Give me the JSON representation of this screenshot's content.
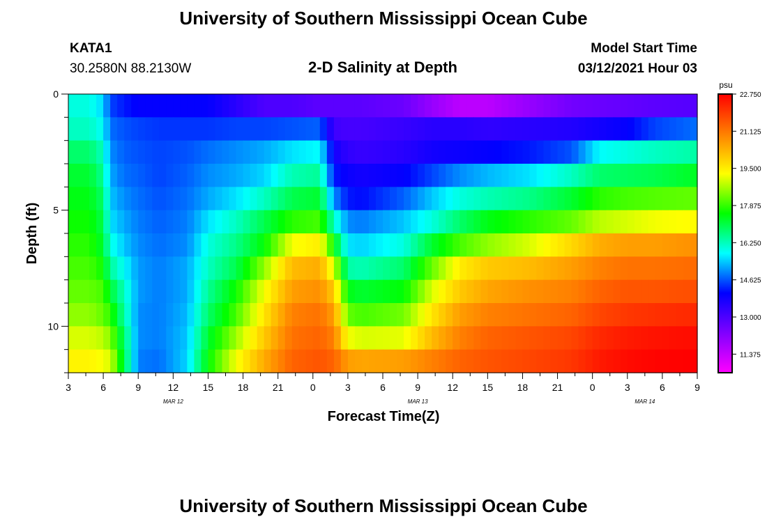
{
  "header": {
    "title": "University of Southern Mississippi Ocean Cube",
    "station": "KATA1",
    "coords": "30.2580N 88.2130W",
    "subtitle": "2-D Salinity at Depth",
    "model_label": "Model Start Time",
    "model_time": "03/12/2021 Hour 03"
  },
  "footer": {
    "title": "University of Southern Mississippi Ocean Cube"
  },
  "colors": {
    "background": "#ffffff",
    "text": "#000000",
    "scale": [
      "#ff00ff",
      "#8000ff",
      "#0000ff",
      "#00ffff",
      "#00ff00",
      "#ffff00",
      "#ff8000",
      "#ff0000"
    ]
  },
  "chart_data": {
    "type": "heatmap",
    "xlabel": "Forecast Time(Z)",
    "ylabel": "Depth (ft)",
    "x_tick_labels": [
      "3",
      "6",
      "9",
      "12",
      "15",
      "18",
      "21",
      "0",
      "3",
      "6",
      "9",
      "12",
      "15",
      "18",
      "21",
      "0",
      "3",
      "6",
      "9"
    ],
    "y_ticks": [
      0,
      5,
      10
    ],
    "y_range": [
      0,
      12
    ],
    "date_labels": [
      {
        "text": "MAR 12",
        "hour_index": 3
      },
      {
        "text": "MAR 13",
        "hour_index": 10
      },
      {
        "text": "MAR 14",
        "hour_index": 16.5
      }
    ],
    "colorbar": {
      "unit": "psu",
      "min": 10.562,
      "max": 22.75,
      "labels": [
        "22.750",
        "21.125",
        "19.500",
        "17.875",
        "16.250",
        "14.625",
        "13.000",
        "11.375"
      ],
      "label_values": [
        22.75,
        21.125,
        19.5,
        17.875,
        16.25,
        14.625,
        13.0,
        11.375
      ]
    },
    "depth_levels": [
      0.5,
      1.5,
      2.5,
      3.5,
      4.5,
      5.5,
      6.5,
      7.5,
      8.5,
      9.5,
      10.5,
      11.5
    ],
    "time_hours_key": [
      0,
      3,
      5,
      6,
      8,
      10,
      13,
      17,
      20,
      24,
      28,
      32,
      36,
      38,
      40,
      42,
      48,
      52,
      56,
      60,
      66,
      72,
      76,
      80,
      84,
      90
    ],
    "salinity_psu": [
      [
        16.0,
        16.0,
        15.5,
        14.5,
        14.2,
        14.0,
        14.0,
        14.0,
        14.0,
        13.5,
        13.0,
        13.0,
        12.8,
        12.8,
        12.8,
        12.8,
        12.6,
        12.0,
        11.5,
        11.5,
        12.0,
        12.5,
        12.6,
        12.7,
        12.8,
        12.9
      ],
      [
        16.2,
        16.2,
        15.8,
        14.8,
        14.6,
        14.5,
        14.4,
        14.4,
        14.4,
        14.5,
        14.5,
        14.6,
        14.7,
        13.2,
        13.1,
        13.1,
        13.3,
        13.5,
        13.5,
        13.4,
        13.5,
        13.6,
        13.8,
        14.0,
        14.5,
        14.8
      ],
      [
        16.8,
        16.8,
        16.2,
        15.0,
        14.7,
        14.6,
        14.5,
        14.6,
        14.8,
        15.0,
        15.2,
        15.6,
        15.8,
        13.8,
        13.4,
        13.3,
        13.5,
        13.8,
        13.9,
        14.0,
        14.2,
        14.6,
        15.8,
        16.0,
        16.2,
        16.4
      ],
      [
        17.2,
        17.2,
        16.5,
        15.2,
        14.8,
        14.7,
        14.5,
        14.7,
        15.0,
        15.2,
        15.5,
        16.3,
        16.5,
        14.2,
        13.9,
        13.8,
        14.0,
        14.5,
        15.0,
        15.3,
        15.6,
        16.2,
        16.8,
        16.9,
        17.0,
        17.3
      ],
      [
        17.4,
        17.4,
        16.8,
        15.4,
        15.0,
        14.8,
        14.6,
        14.8,
        15.2,
        15.6,
        16.2,
        17.0,
        17.2,
        15.0,
        14.2,
        14.1,
        14.7,
        15.4,
        16.0,
        16.3,
        16.6,
        17.2,
        17.8,
        18.0,
        18.1,
        18.2
      ],
      [
        17.6,
        17.6,
        17.0,
        15.6,
        15.2,
        14.9,
        14.7,
        14.9,
        15.6,
        16.2,
        17.0,
        17.8,
        18.0,
        16.2,
        15.0,
        14.9,
        15.4,
        16.0,
        16.8,
        17.4,
        17.8,
        18.2,
        18.8,
        19.0,
        19.2,
        19.3
      ],
      [
        17.8,
        17.8,
        17.2,
        16.0,
        15.4,
        15.0,
        14.8,
        15.0,
        16.0,
        16.6,
        17.5,
        19.2,
        19.5,
        17.5,
        15.6,
        15.5,
        16.0,
        17.2,
        18.0,
        18.5,
        19.0,
        19.8,
        20.4,
        20.6,
        20.6,
        20.8
      ],
      [
        18.0,
        18.0,
        17.6,
        16.5,
        15.8,
        15.1,
        14.9,
        15.2,
        16.2,
        17.0,
        18.5,
        20.2,
        20.4,
        19.0,
        16.4,
        16.3,
        16.8,
        18.2,
        19.5,
        20.0,
        20.2,
        20.6,
        21.0,
        21.2,
        21.2,
        21.3
      ],
      [
        18.2,
        18.2,
        18.0,
        17.2,
        16.2,
        15.1,
        14.9,
        15.2,
        16.5,
        17.6,
        19.2,
        20.6,
        20.8,
        20.0,
        17.4,
        17.2,
        17.5,
        19.0,
        20.0,
        20.5,
        20.8,
        21.0,
        21.4,
        21.6,
        21.6,
        21.7
      ],
      [
        18.5,
        18.5,
        18.2,
        17.8,
        16.4,
        15.0,
        14.9,
        15.3,
        16.8,
        18.0,
        19.6,
        21.0,
        21.2,
        20.6,
        18.2,
        18.0,
        18.3,
        19.6,
        20.6,
        21.0,
        21.2,
        21.4,
        21.8,
        22.0,
        22.1,
        22.2
      ],
      [
        19.0,
        19.0,
        18.8,
        18.4,
        16.8,
        15.0,
        14.9,
        15.4,
        17.2,
        18.6,
        20.0,
        21.2,
        21.4,
        21.0,
        19.2,
        19.0,
        19.1,
        20.2,
        21.0,
        21.4,
        21.6,
        21.8,
        22.2,
        22.4,
        22.5,
        22.6
      ],
      [
        19.4,
        19.4,
        19.2,
        19.0,
        17.0,
        14.9,
        14.8,
        15.5,
        17.5,
        19.2,
        20.4,
        21.4,
        21.6,
        21.4,
        20.6,
        20.5,
        20.6,
        21.0,
        21.4,
        21.6,
        21.8,
        22.0,
        22.4,
        22.6,
        22.7,
        22.75
      ]
    ]
  }
}
